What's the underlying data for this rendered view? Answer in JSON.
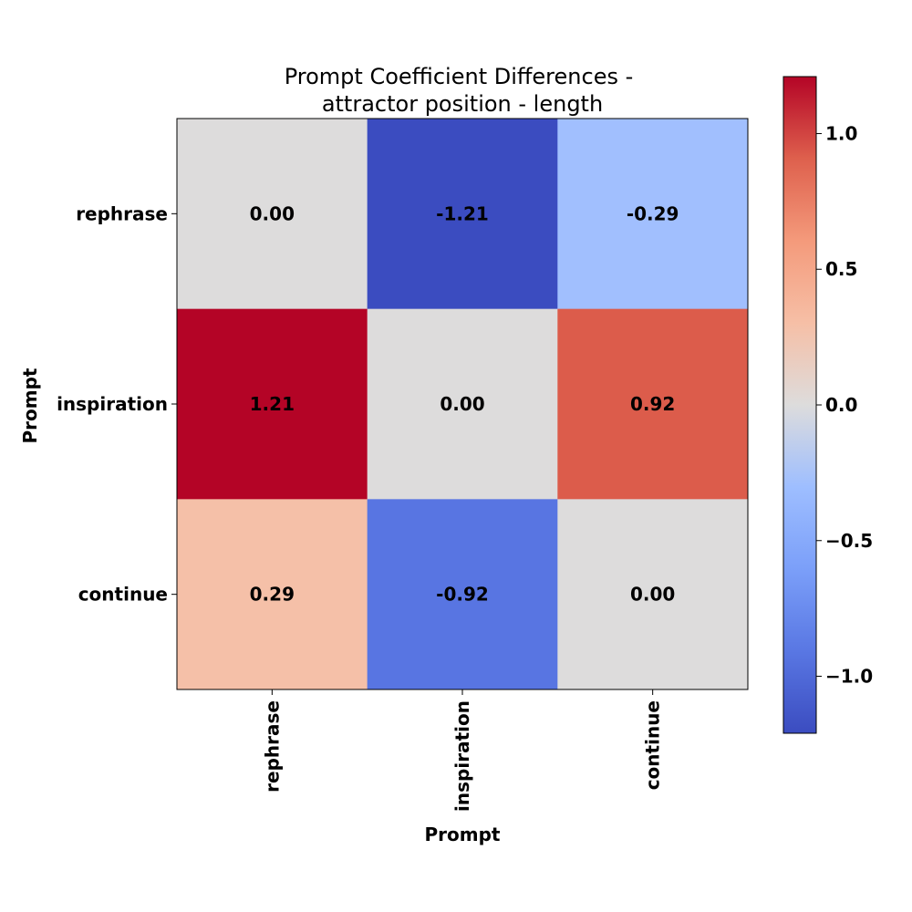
{
  "chart_data": {
    "type": "heatmap",
    "title_line1": "Prompt Coefficient Differences -",
    "title_line2": "attractor position - length",
    "xlabel": "Prompt",
    "ylabel": "Prompt",
    "x_categories": [
      "rephrase",
      "inspiration",
      "continue"
    ],
    "y_categories": [
      "rephrase",
      "inspiration",
      "continue"
    ],
    "values": [
      [
        0.0,
        -1.21,
        -0.29
      ],
      [
        1.21,
        0.0,
        0.92
      ],
      [
        0.29,
        -0.92,
        0.0
      ]
    ],
    "value_labels": [
      [
        "0.00",
        "-1.21",
        "-0.29"
      ],
      [
        "1.21",
        "0.00",
        "0.92"
      ],
      [
        "0.29",
        "-0.92",
        "0.00"
      ]
    ],
    "colormap": "coolwarm",
    "vmin": -1.21,
    "vmax": 1.21,
    "colorbar_ticks": [
      1.0,
      0.5,
      0.0,
      -0.5,
      -1.0
    ],
    "colorbar_tick_labels": [
      "1.0",
      "0.5",
      "0.0",
      "−0.5",
      "−1.0"
    ],
    "grid": false
  }
}
